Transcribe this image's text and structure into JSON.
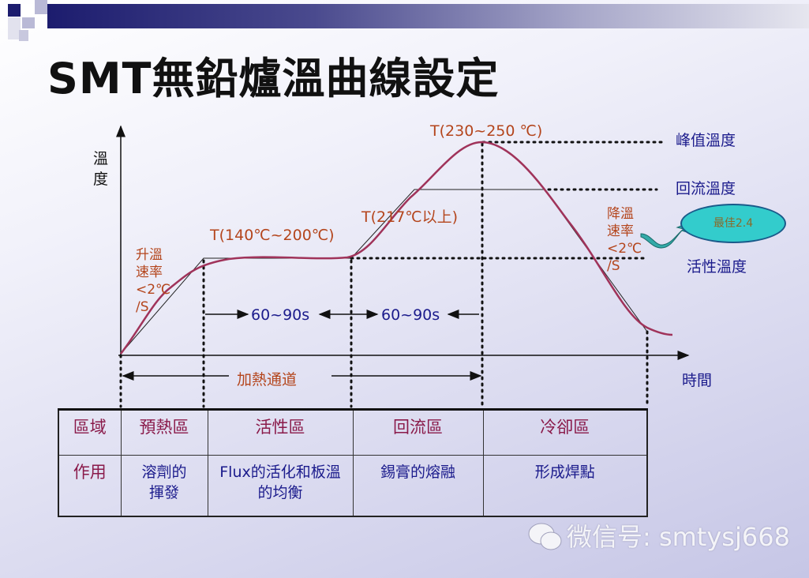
{
  "title": "SMT無鉛爐溫曲線設定",
  "axes": {
    "y_label": "溫度",
    "x_label": "時間"
  },
  "labels": {
    "peak_temp": "T(230~250 ℃)",
    "reflow_temp": "T(217℃以上)",
    "soak_temp": "T(140℃~200℃)",
    "ramp_up": [
      "升溫",
      "速率",
      "<2℃",
      "/S"
    ],
    "ramp_down": [
      "降溫",
      "速率",
      "<2℃",
      "/S"
    ],
    "peak_level": "峰值溫度",
    "reflow_level": "回流溫度",
    "active_level": "活性溫度",
    "soak_time": "60~90s",
    "reflow_time": "60~90s",
    "heating_channel": "加熱通道",
    "best_rate": "最佳2.4"
  },
  "table": {
    "rows": [
      [
        "區域",
        "預熱區",
        "活性區",
        "回流區",
        "冷卻區"
      ],
      [
        "作用",
        "溶劑的揮發",
        "Flux的活化和板溫的均衡",
        "錫膏的熔融",
        "形成焊點"
      ]
    ]
  },
  "watermark": "微信号: smtysj668",
  "colors": {
    "curve": "#a0335a",
    "label_red": "#b4451c",
    "label_blue": "#1b1b8c",
    "header_bar": "#1c1c6e",
    "bubble": "#33cccc"
  }
}
